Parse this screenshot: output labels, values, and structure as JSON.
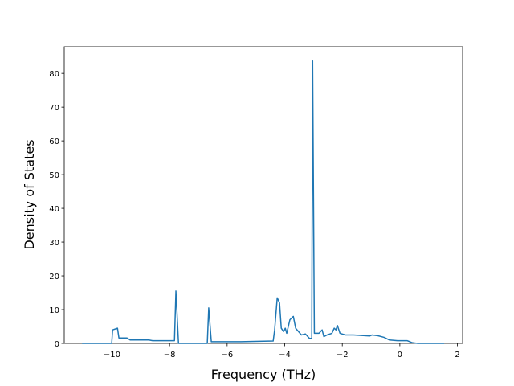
{
  "chart_data": {
    "type": "line",
    "x_label": "Frequency (THz)",
    "y_label": "Density of States",
    "x": [
      -11.04,
      -10.01,
      -9.98,
      -9.81,
      -9.76,
      -9.48,
      -9.37,
      -8.72,
      -8.59,
      -7.83,
      -7.78,
      -7.69,
      -6.69,
      -6.64,
      -6.55,
      -5.52,
      -4.4,
      -4.35,
      -4.26,
      -4.18,
      -4.12,
      -4.04,
      -3.98,
      -3.93,
      -3.82,
      -3.7,
      -3.62,
      -3.42,
      -3.28,
      -3.14,
      -3.06,
      -3.03,
      -2.97,
      -2.81,
      -2.7,
      -2.64,
      -2.53,
      -2.36,
      -2.28,
      -2.22,
      -2.17,
      -2.08,
      -1.89,
      -1.61,
      -1.05,
      -0.97,
      -0.77,
      -0.55,
      -0.36,
      -0.08,
      0.26,
      0.43,
      0.62,
      1.54
    ],
    "series": [
      {
        "color": "#1f77b4",
        "values": [
          0,
          0,
          4,
          4.5,
          1.6,
          1.6,
          1.0,
          1.0,
          0.8,
          0.8,
          15.5,
          0,
          0,
          10.5,
          0.5,
          0.5,
          0.7,
          4,
          13.5,
          12,
          4.5,
          3.5,
          4.5,
          3,
          7,
          8,
          4.5,
          2.5,
          2.8,
          1.5,
          1.5,
          83.7,
          3,
          3,
          4,
          2,
          2.5,
          3,
          4.5,
          4,
          5.3,
          3,
          2.5,
          2.5,
          2.2,
          2.5,
          2.3,
          1.8,
          1.0,
          0.8,
          0.8,
          0.2,
          0,
          0
        ]
      }
    ],
    "xlim": [
      -11.66,
      2.18
    ],
    "xticks": [
      {
        "value": -10,
        "label": "−10"
      },
      {
        "value": -8,
        "label": "−8"
      },
      {
        "value": -6,
        "label": "−6"
      },
      {
        "value": -4,
        "label": "−4"
      },
      {
        "value": -2,
        "label": "−2"
      },
      0,
      2
    ],
    "ylim": [
      0,
      87.9
    ],
    "yticks": [
      0,
      10,
      20,
      30,
      40,
      50,
      60,
      70,
      80
    ],
    "grid": false
  }
}
